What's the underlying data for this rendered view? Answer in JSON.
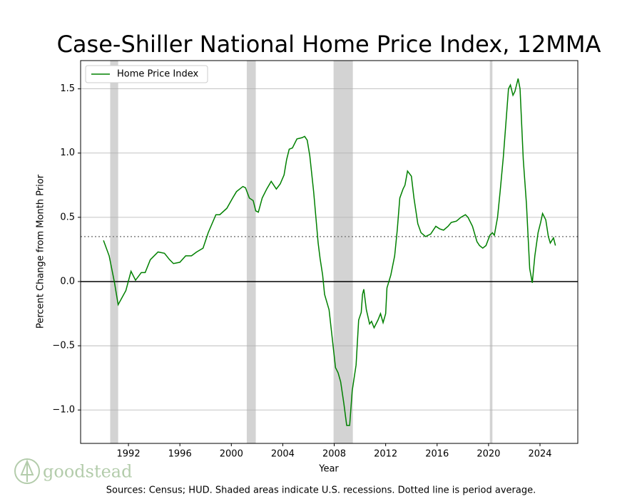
{
  "chart_data": {
    "type": "line",
    "title": "Case-Shiller National Home Price Index, 12MMA",
    "x_label": "Year",
    "y_label": "Percent Change from Month Prior",
    "source": "Sources: Census; HUD. Shaded areas indicate U.S. recessions. Dotted line is period average.",
    "logo_text": "goodstead",
    "x": [
      1990.06,
      1990.5,
      1990.9,
      1991.2,
      1991.8,
      1992.2,
      1992.55,
      1993.0,
      1993.3,
      1993.7,
      1994.3,
      1994.8,
      1995.2,
      1995.5,
      1996.0,
      1996.45,
      1996.9,
      1997.3,
      1997.8,
      1998.2,
      1998.8,
      1999.1,
      1999.65,
      2000.1,
      2000.4,
      2000.9,
      2001.1,
      2001.4,
      2001.7,
      2001.9,
      2002.1,
      2002.4,
      2002.75,
      2003.1,
      2003.5,
      2003.8,
      2004.1,
      2004.3,
      2004.5,
      2004.75,
      2005.1,
      2005.5,
      2005.7,
      2005.9,
      2006.1,
      2006.4,
      2006.75,
      2006.9,
      2007.1,
      2007.25,
      2007.6,
      2007.8,
      2008.1,
      2008.3,
      2008.5,
      2008.75,
      2008.97,
      2009.2,
      2009.4,
      2009.7,
      2009.9,
      2010.1,
      2010.2,
      2010.3,
      2010.5,
      2010.75,
      2010.9,
      2011.1,
      2011.4,
      2011.6,
      2011.8,
      2012.0,
      2012.1,
      2012.4,
      2012.7,
      2012.9,
      2013.1,
      2013.35,
      2013.5,
      2013.7,
      2014.0,
      2014.2,
      2014.5,
      2014.75,
      2015.1,
      2015.5,
      2015.9,
      2016.2,
      2016.5,
      2016.85,
      2017.1,
      2017.5,
      2017.85,
      2018.2,
      2018.4,
      2018.75,
      2019.1,
      2019.3,
      2019.55,
      2019.8,
      2020.1,
      2020.3,
      2020.45,
      2020.7,
      2020.9,
      2021.15,
      2021.4,
      2021.55,
      2021.7,
      2021.9,
      2022.05,
      2022.3,
      2022.45,
      2022.7,
      2022.95,
      2023.2,
      2023.4,
      2023.6,
      2023.85,
      2024.05,
      2024.2,
      2024.45,
      2024.65,
      2024.8,
      2025.05,
      2025.2
    ],
    "series": [
      {
        "name": "Home Price Index",
        "color": "#008000",
        "values": [
          0.32,
          0.2,
          0.0,
          -0.18,
          -0.07,
          0.08,
          0.01,
          0.07,
          0.07,
          0.17,
          0.23,
          0.22,
          0.17,
          0.14,
          0.15,
          0.2,
          0.2,
          0.23,
          0.26,
          0.38,
          0.52,
          0.52,
          0.57,
          0.65,
          0.7,
          0.74,
          0.73,
          0.65,
          0.63,
          0.55,
          0.54,
          0.65,
          0.72,
          0.78,
          0.72,
          0.76,
          0.83,
          0.95,
          1.03,
          1.04,
          1.11,
          1.12,
          1.13,
          1.1,
          0.98,
          0.7,
          0.3,
          0.18,
          0.05,
          -0.1,
          -0.22,
          -0.4,
          -0.67,
          -0.71,
          -0.78,
          -0.95,
          -1.12,
          -1.12,
          -0.85,
          -0.65,
          -0.3,
          -0.24,
          -0.1,
          -0.06,
          -0.22,
          -0.33,
          -0.31,
          -0.36,
          -0.3,
          -0.25,
          -0.32,
          -0.25,
          -0.05,
          0.05,
          0.2,
          0.4,
          0.65,
          0.72,
          0.75,
          0.86,
          0.82,
          0.65,
          0.45,
          0.38,
          0.35,
          0.37,
          0.43,
          0.41,
          0.4,
          0.43,
          0.46,
          0.47,
          0.5,
          0.52,
          0.5,
          0.43,
          0.31,
          0.28,
          0.26,
          0.28,
          0.36,
          0.38,
          0.36,
          0.5,
          0.7,
          0.97,
          1.3,
          1.5,
          1.53,
          1.45,
          1.48,
          1.58,
          1.5,
          0.95,
          0.6,
          0.1,
          -0.01,
          0.2,
          0.38,
          0.46,
          0.53,
          0.48,
          0.35,
          0.3,
          0.34,
          0.28
        ]
      }
    ],
    "recessions": [
      [
        1990.58,
        1991.2
      ],
      [
        2001.2,
        2001.9
      ],
      [
        2007.95,
        2009.45
      ],
      [
        2020.1,
        2020.3
      ]
    ],
    "average": 0.35,
    "xlim": [
      1988.28,
      2026.94
    ],
    "ylim": [
      -1.26,
      1.72
    ],
    "xticks": [
      1992,
      1996,
      2000,
      2004,
      2008,
      2012,
      2016,
      2020,
      2024
    ],
    "yticks": [
      {
        "value": -1,
        "label": "−1.0"
      },
      {
        "value": -0.5,
        "label": "−0.5"
      },
      {
        "value": 0,
        "label": "0.0"
      },
      0.5,
      {
        "value": 1,
        "label": "1.0"
      },
      1.5
    ],
    "grid": true,
    "legend": "upper left"
  }
}
